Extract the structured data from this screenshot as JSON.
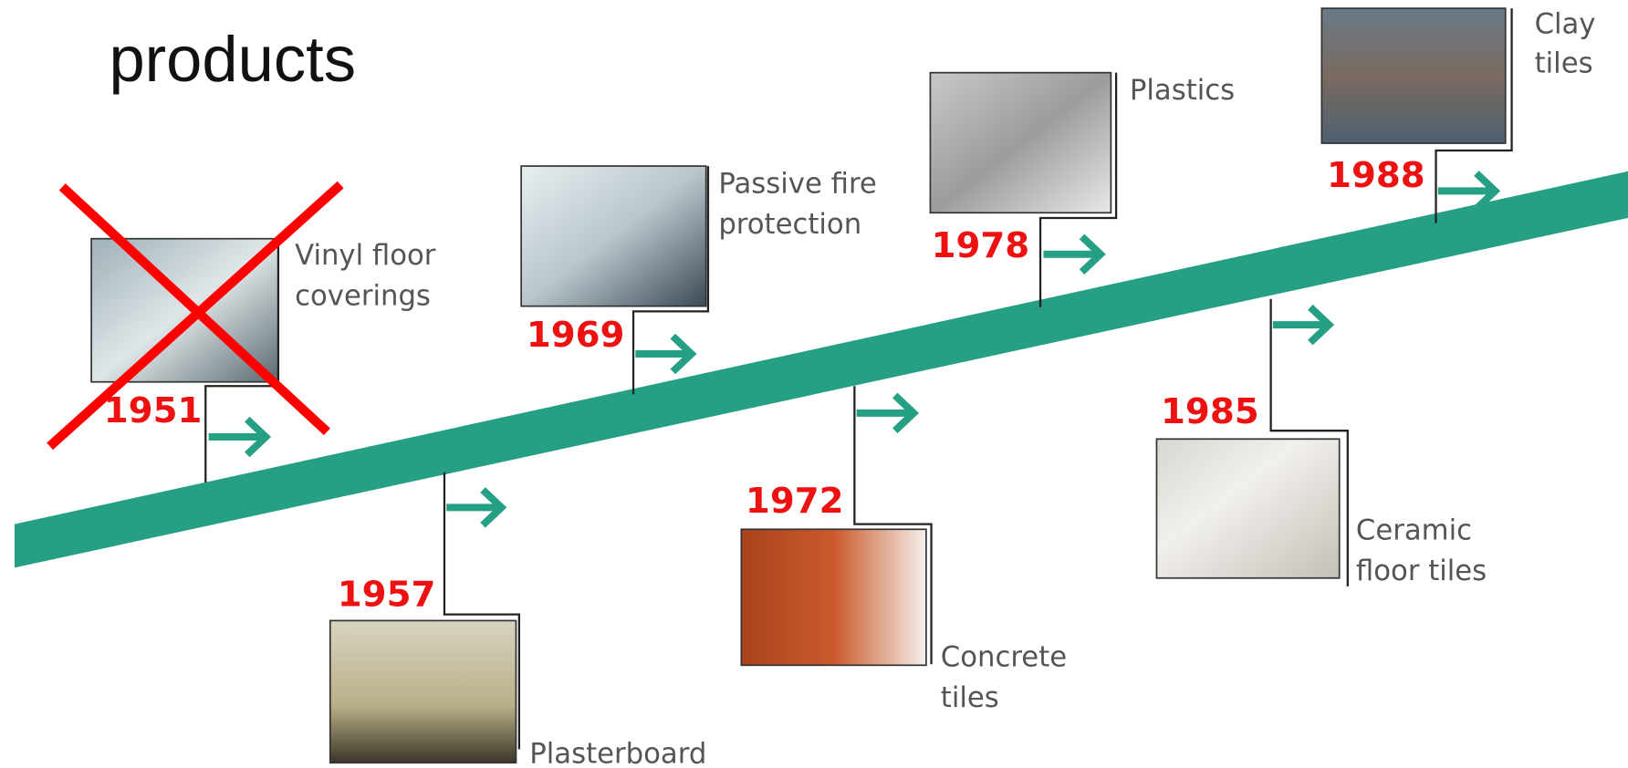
{
  "title": "products",
  "items": [
    {
      "year": "1951",
      "label": [
        "Vinyl floor",
        "coverings"
      ]
    },
    {
      "year": "1957",
      "label": [
        "Plasterboard"
      ]
    },
    {
      "year": "1969",
      "label": [
        "Passive fire",
        "protection"
      ]
    },
    {
      "year": "1972",
      "label": [
        "Concrete",
        "tiles"
      ]
    },
    {
      "year": "1978",
      "label": [
        "Plastics"
      ]
    },
    {
      "year": "1985",
      "label": [
        "Ceramic",
        "floor tiles"
      ]
    },
    {
      "year": "1988",
      "label": [
        "Clay",
        "tiles"
      ]
    }
  ]
}
